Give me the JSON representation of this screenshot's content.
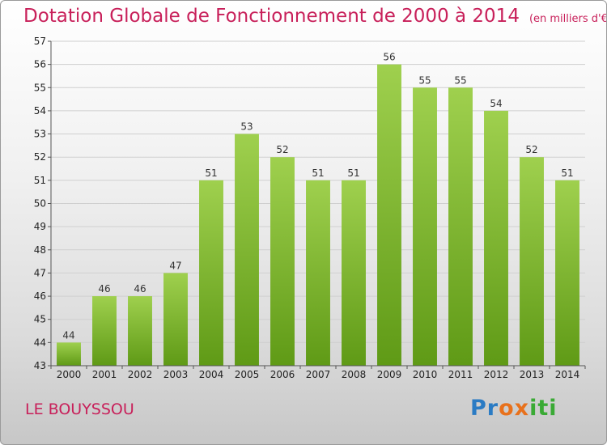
{
  "chart_data": {
    "type": "bar",
    "title": "Dotation Globale de Fonctionnement de 2000 à 2014",
    "subtitle": "(en milliers d'€)",
    "categories": [
      "2000",
      "2001",
      "2002",
      "2003",
      "2004",
      "2005",
      "2006",
      "2007",
      "2008",
      "2009",
      "2010",
      "2011",
      "2012",
      "2013",
      "2014"
    ],
    "values": [
      44,
      46,
      46,
      47,
      51,
      53,
      52,
      51,
      51,
      56,
      55,
      55,
      54,
      52,
      51
    ],
    "ylim": [
      43,
      57
    ],
    "yticks": [
      43,
      44,
      45,
      46,
      47,
      48,
      49,
      50,
      51,
      52,
      53,
      54,
      55,
      56,
      57
    ],
    "grid": true,
    "bar_color": "#7dba3a"
  },
  "commune": "LE BOUYSSOU",
  "brand": "Proxiti"
}
